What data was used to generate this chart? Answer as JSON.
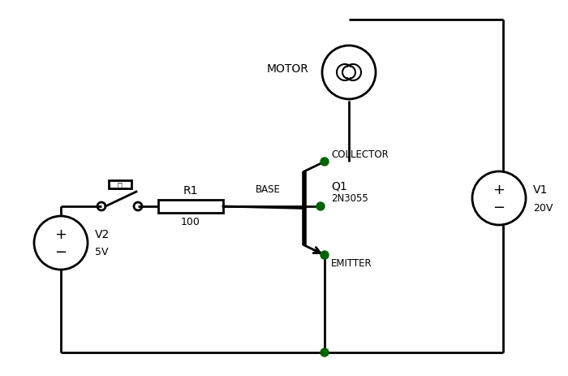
{
  "bg_color": "#ffffff",
  "line_color": "#000000",
  "dot_color": "#006400",
  "V1_label": "V1",
  "V1_value": "20V",
  "V2_label": "V2",
  "V2_value": "5V",
  "R1_label": "R1",
  "R1_value": "100",
  "Q1_label": "Q1",
  "Q1_model": "2N3055",
  "motor_label": "MOTOR",
  "collector_label": "COLLECTOR",
  "base_label": "BASE",
  "emitter_label": "EMITTER",
  "lw": 2.0
}
